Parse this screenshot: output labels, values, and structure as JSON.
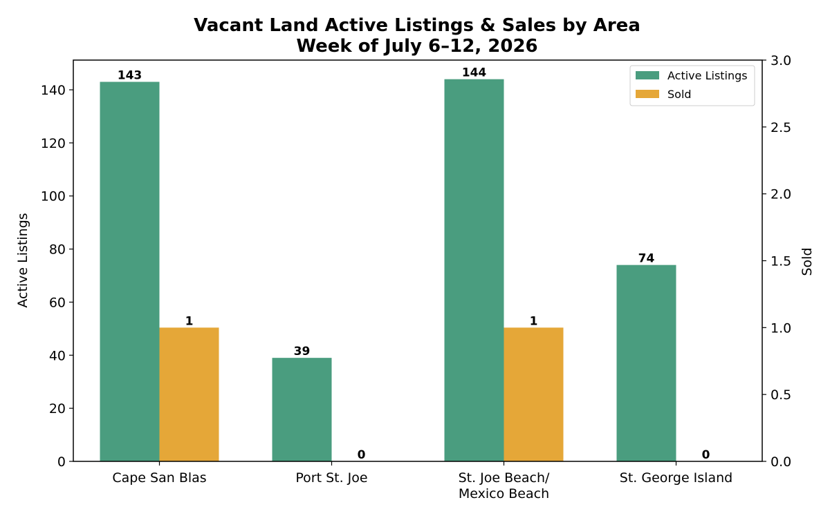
{
  "chart_data": {
    "type": "bar",
    "title": "Vacant Land Active Listings & Sales by Area",
    "subtitle": "Week of July 6–12, 2026",
    "categories": [
      [
        "Cape San Blas"
      ],
      [
        "Port St. Joe"
      ],
      [
        "St. Joe Beach/",
        "Mexico Beach"
      ],
      [
        "St. George Island"
      ]
    ],
    "series": [
      {
        "name": "Active Listings",
        "axis": "left",
        "color": "#4a9d7f",
        "values": [
          143,
          39,
          144,
          74
        ],
        "labels": [
          "143",
          "39",
          "144",
          "74"
        ]
      },
      {
        "name": "Sold",
        "axis": "right",
        "color": "#e5a738",
        "values": [
          1,
          0,
          1,
          0
        ],
        "labels": [
          "1",
          "0",
          "1",
          "0"
        ]
      }
    ],
    "ylabel": "Active Listings",
    "y2label": "Sold",
    "ylim": [
      0,
      151.2
    ],
    "y2lim": [
      0,
      3.0
    ],
    "yticks": [
      "0",
      "20",
      "40",
      "60",
      "80",
      "100",
      "120",
      "140"
    ],
    "y2ticks": [
      "0.0",
      "0.5",
      "1.0",
      "1.5",
      "2.0",
      "2.5",
      "3.0"
    ],
    "legend_position": "top-right",
    "grid": false
  }
}
